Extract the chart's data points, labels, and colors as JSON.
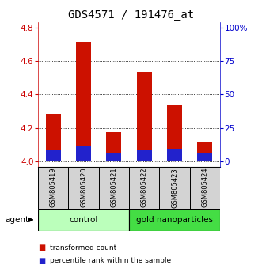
{
  "title": "GDS4571 / 191476_at",
  "samples": [
    "GSM805419",
    "GSM805420",
    "GSM805421",
    "GSM805422",
    "GSM805423",
    "GSM805424"
  ],
  "red_values": [
    4.285,
    4.715,
    4.175,
    4.535,
    4.335,
    4.115
  ],
  "blue_values": [
    4.065,
    4.095,
    4.055,
    4.065,
    4.07,
    4.055
  ],
  "ylim_left": [
    3.97,
    4.83
  ],
  "yticks_left": [
    4.0,
    4.2,
    4.4,
    4.6,
    4.8
  ],
  "ytick_right_labels": [
    "0",
    "25",
    "50",
    "75",
    "100%"
  ],
  "bar_width": 0.5,
  "bar_base": 4.0,
  "legend_red": "transformed count",
  "legend_blue": "percentile rank within the sample",
  "title_fontsize": 10,
  "axis_color_left": "#cc0000",
  "axis_color_right": "#0000cc",
  "group_ctrl_color": "#bbffbb",
  "group_nano_color": "#44dd44"
}
